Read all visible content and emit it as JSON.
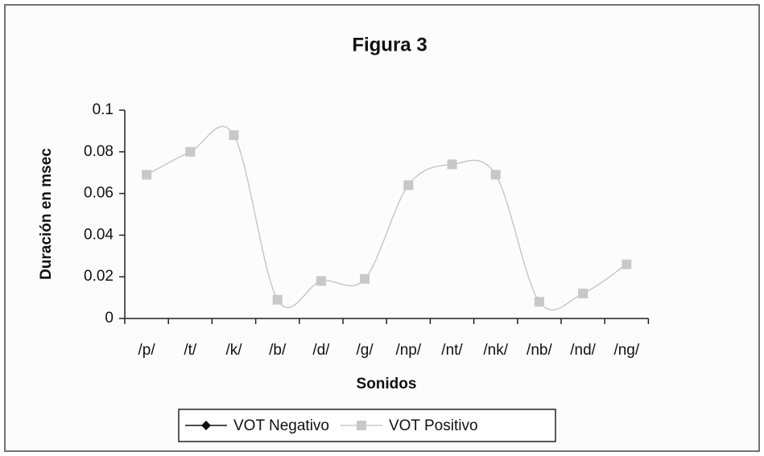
{
  "chart_data": {
    "type": "line",
    "title": "Figura 3",
    "x_label": "Sonidos",
    "y_label": "Duración en msec",
    "categories": [
      "/p/",
      "/t/",
      "/k/",
      "/b/",
      "/d/",
      "/g/",
      "/np/",
      "/nt/",
      "/nk/",
      "/nb/",
      "/nd/",
      "/ng/"
    ],
    "series": [
      {
        "name": "VOT Negativo",
        "color": "#111111",
        "marker": "diamond",
        "values": [
          null,
          null,
          null,
          null,
          null,
          null,
          null,
          null,
          null,
          null,
          null,
          null
        ]
      },
      {
        "name": "VOT Positivo",
        "color": "#c8c8c8",
        "marker": "square",
        "values": [
          0.069,
          0.08,
          0.088,
          0.009,
          0.018,
          0.019,
          0.064,
          0.074,
          0.069,
          0.008,
          0.012,
          0.026
        ]
      }
    ],
    "ylim": [
      0,
      0.1
    ],
    "yticks": [
      0,
      0.02,
      0.04,
      0.06,
      0.08,
      0.1
    ],
    "smooth": true,
    "legend": "bottom"
  }
}
